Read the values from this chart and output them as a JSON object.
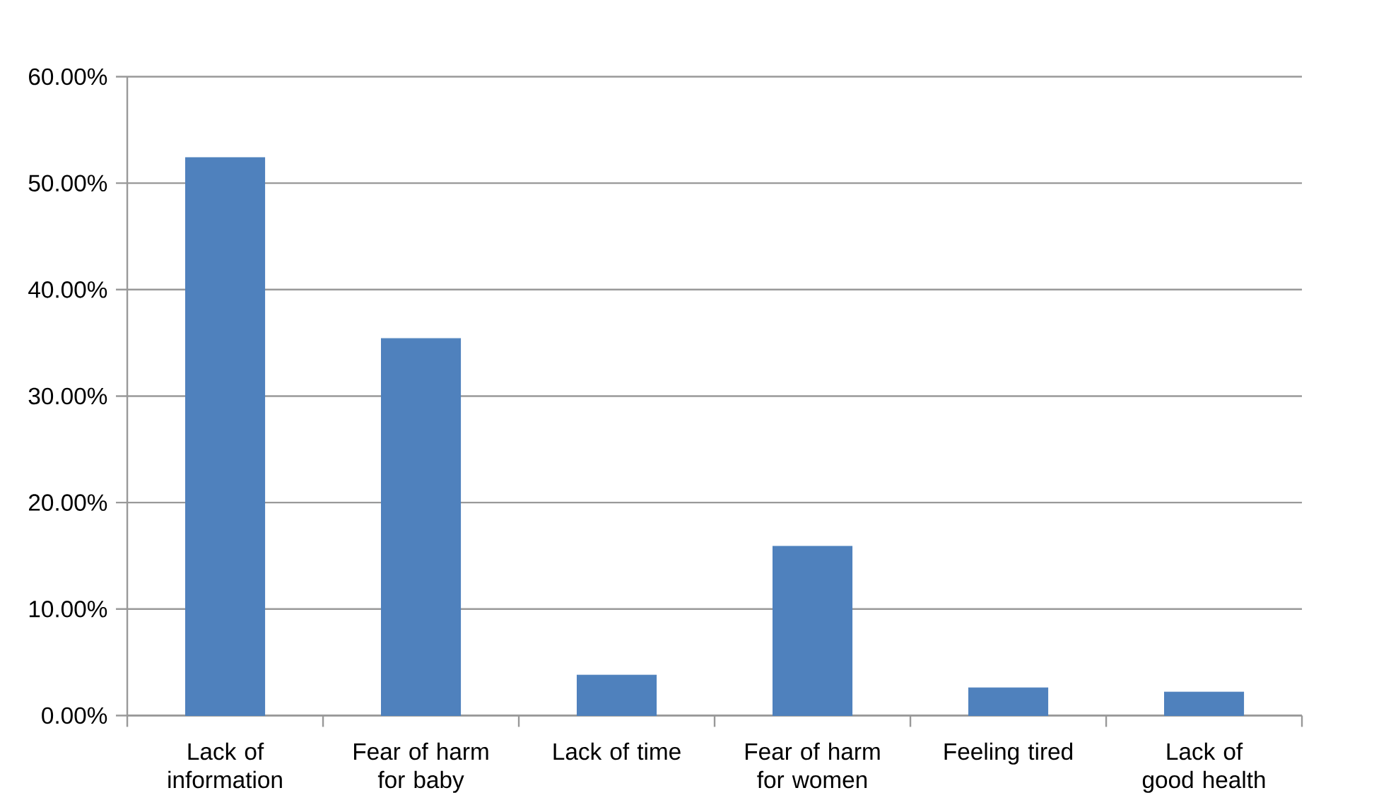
{
  "chart_data": {
    "type": "bar",
    "categories": [
      "Lack of information",
      "Fear of harm for baby",
      "Lack of time",
      "Fear of harm for women",
      "Feeling tired",
      "Lack of good health"
    ],
    "values": [
      52.4,
      35.4,
      3.8,
      15.9,
      2.6,
      2.2
    ],
    "color": "#4f81bd",
    "ylim": [
      0,
      60
    ],
    "yticks": [
      {
        "value": 0,
        "label": "0.00%"
      },
      {
        "value": 10,
        "label": "10.00%"
      },
      {
        "value": 20,
        "label": "20.00%"
      },
      {
        "value": 30,
        "label": "30.00%"
      },
      {
        "value": 40,
        "label": "40.00%"
      },
      {
        "value": 50,
        "label": "50.00%"
      },
      {
        "value": 60,
        "label": "60.00%"
      }
    ],
    "grid": "y"
  }
}
